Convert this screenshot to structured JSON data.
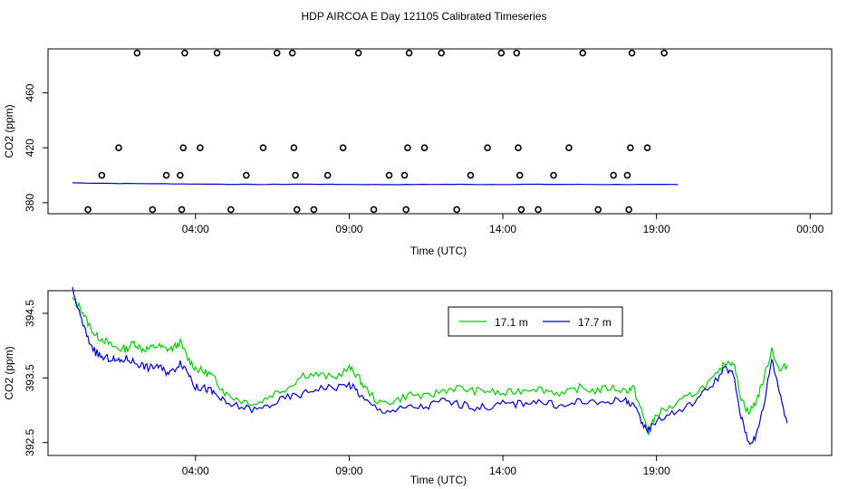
{
  "title": "HDP AIRCOA E  Day 121105  Calibrated Timeseries",
  "chart_data": [
    {
      "type": "scatter",
      "xlabel": "Time (UTC)",
      "ylabel": "CO2 (ppm)",
      "xlim_hours": [
        -0.8,
        24.7
      ],
      "ylim": [
        372,
        492
      ],
      "xticks": [
        {
          "h": 4,
          "label": "04:00"
        },
        {
          "h": 9,
          "label": "09:00"
        },
        {
          "h": 14,
          "label": "14:00"
        },
        {
          "h": 19,
          "label": "19:00"
        },
        {
          "h": 24,
          "label": "00:00"
        }
      ],
      "yticks": [
        380,
        420,
        460
      ],
      "points": [
        {
          "t": 0.5,
          "v": 375
        },
        {
          "t": 0.95,
          "v": 400
        },
        {
          "t": 1.5,
          "v": 420
        },
        {
          "t": 2.1,
          "v": 489
        },
        {
          "t": 2.6,
          "v": 375
        },
        {
          "t": 3.05,
          "v": 400
        },
        {
          "t": 3.5,
          "v": 400
        },
        {
          "t": 3.55,
          "v": 375
        },
        {
          "t": 3.6,
          "v": 420
        },
        {
          "t": 3.65,
          "v": 489
        },
        {
          "t": 4.15,
          "v": 420
        },
        {
          "t": 4.7,
          "v": 489
        },
        {
          "t": 5.15,
          "v": 375
        },
        {
          "t": 5.65,
          "v": 400
        },
        {
          "t": 6.2,
          "v": 420
        },
        {
          "t": 6.65,
          "v": 489
        },
        {
          "t": 7.15,
          "v": 489
        },
        {
          "t": 7.2,
          "v": 420
        },
        {
          "t": 7.25,
          "v": 400
        },
        {
          "t": 7.3,
          "v": 375
        },
        {
          "t": 7.85,
          "v": 375
        },
        {
          "t": 8.3,
          "v": 400
        },
        {
          "t": 8.8,
          "v": 420
        },
        {
          "t": 9.3,
          "v": 489
        },
        {
          "t": 9.8,
          "v": 375
        },
        {
          "t": 10.3,
          "v": 400
        },
        {
          "t": 10.8,
          "v": 400
        },
        {
          "t": 10.85,
          "v": 375
        },
        {
          "t": 10.9,
          "v": 420
        },
        {
          "t": 10.95,
          "v": 489
        },
        {
          "t": 11.45,
          "v": 420
        },
        {
          "t": 12.0,
          "v": 489
        },
        {
          "t": 12.5,
          "v": 375
        },
        {
          "t": 12.95,
          "v": 400
        },
        {
          "t": 13.5,
          "v": 420
        },
        {
          "t": 13.95,
          "v": 489
        },
        {
          "t": 14.45,
          "v": 489
        },
        {
          "t": 14.5,
          "v": 420
        },
        {
          "t": 14.55,
          "v": 400
        },
        {
          "t": 14.6,
          "v": 375
        },
        {
          "t": 15.15,
          "v": 375
        },
        {
          "t": 15.65,
          "v": 400
        },
        {
          "t": 16.15,
          "v": 420
        },
        {
          "t": 16.6,
          "v": 489
        },
        {
          "t": 17.1,
          "v": 375
        },
        {
          "t": 17.6,
          "v": 400
        },
        {
          "t": 18.05,
          "v": 400
        },
        {
          "t": 18.1,
          "v": 375
        },
        {
          "t": 18.15,
          "v": 420
        },
        {
          "t": 18.2,
          "v": 489
        },
        {
          "t": 18.7,
          "v": 420
        },
        {
          "t": 19.25,
          "v": 489
        }
      ],
      "series": [
        {
          "name": "mean",
          "color": "#0000cc",
          "t_start": 0.0,
          "t_end": 19.7,
          "values": [
            394.5,
            394.0,
            393.8,
            393.5,
            393.3,
            393.5,
            393.3,
            393.2,
            393.4,
            393.3,
            393.4,
            393.3,
            393.3,
            393.2
          ]
        }
      ]
    },
    {
      "type": "line",
      "xlabel": "Time (UTC)",
      "ylabel": "CO2 (ppm)",
      "xlim_hours": [
        -0.8,
        24.7
      ],
      "ylim": [
        392.3,
        394.85
      ],
      "xticks": [
        {
          "h": 4,
          "label": "04:00"
        },
        {
          "h": 9,
          "label": "09:00"
        },
        {
          "h": 14,
          "label": "14:00"
        },
        {
          "h": 19,
          "label": "19:00"
        }
      ],
      "yticks": [
        {
          "v": 392.5,
          "label": "392.5"
        },
        {
          "v": 393.5,
          "label": "393.5"
        },
        {
          "v": 394.5,
          "label": "394.5"
        }
      ],
      "legend": {
        "position": "top-center"
      },
      "series": [
        {
          "name": "17.1 m",
          "color": "#00cc00",
          "points": [
            [
              0.0,
              394.72
            ],
            [
              0.25,
              394.6
            ],
            [
              0.5,
              394.35
            ],
            [
              0.75,
              394.15
            ],
            [
              1.0,
              394.1
            ],
            [
              1.25,
              394.0
            ],
            [
              1.5,
              393.95
            ],
            [
              1.75,
              393.95
            ],
            [
              2.0,
              394.05
            ],
            [
              2.25,
              393.95
            ],
            [
              2.5,
              393.95
            ],
            [
              2.75,
              394.0
            ],
            [
              3.0,
              393.95
            ],
            [
              3.25,
              393.95
            ],
            [
              3.5,
              394.05
            ],
            [
              3.75,
              393.8
            ],
            [
              4.0,
              393.65
            ],
            [
              4.25,
              393.6
            ],
            [
              4.5,
              393.55
            ],
            [
              4.75,
              393.4
            ],
            [
              5.0,
              393.25
            ],
            [
              5.5,
              393.15
            ],
            [
              6.0,
              393.1
            ],
            [
              6.5,
              393.25
            ],
            [
              7.0,
              393.35
            ],
            [
              7.5,
              393.55
            ],
            [
              8.0,
              393.55
            ],
            [
              8.5,
              393.5
            ],
            [
              9.0,
              393.65
            ],
            [
              9.25,
              393.55
            ],
            [
              9.5,
              393.35
            ],
            [
              10.0,
              393.1
            ],
            [
              10.5,
              393.15
            ],
            [
              11.0,
              393.25
            ],
            [
              11.5,
              393.2
            ],
            [
              12.0,
              393.3
            ],
            [
              12.5,
              393.35
            ],
            [
              13.0,
              393.3
            ],
            [
              13.5,
              393.3
            ],
            [
              14.0,
              393.25
            ],
            [
              14.5,
              393.3
            ],
            [
              15.0,
              393.35
            ],
            [
              15.5,
              393.3
            ],
            [
              16.0,
              393.25
            ],
            [
              16.5,
              393.35
            ],
            [
              17.0,
              393.3
            ],
            [
              17.5,
              393.35
            ],
            [
              18.0,
              393.3
            ],
            [
              18.25,
              393.35
            ],
            [
              18.5,
              393.0
            ],
            [
              18.75,
              392.65
            ],
            [
              19.0,
              392.95
            ],
            [
              19.5,
              393.05
            ],
            [
              20.0,
              393.2
            ],
            [
              20.5,
              393.35
            ],
            [
              21.0,
              393.55
            ],
            [
              21.25,
              393.75
            ],
            [
              21.5,
              393.75
            ],
            [
              21.75,
              393.2
            ],
            [
              22.0,
              392.95
            ],
            [
              22.25,
              393.15
            ],
            [
              22.5,
              393.5
            ],
            [
              22.75,
              393.95
            ],
            [
              23.0,
              393.6
            ],
            [
              23.25,
              393.7
            ]
          ]
        },
        {
          "name": "17.7 m",
          "color": "#0000cc",
          "points": [
            [
              0.0,
              394.85
            ],
            [
              0.25,
              394.45
            ],
            [
              0.5,
              394.1
            ],
            [
              0.75,
              393.9
            ],
            [
              1.0,
              393.8
            ],
            [
              1.25,
              393.8
            ],
            [
              1.5,
              393.75
            ],
            [
              1.75,
              393.8
            ],
            [
              2.0,
              393.75
            ],
            [
              2.25,
              393.7
            ],
            [
              2.5,
              393.65
            ],
            [
              2.75,
              393.7
            ],
            [
              3.0,
              393.6
            ],
            [
              3.25,
              393.6
            ],
            [
              3.5,
              393.75
            ],
            [
              3.75,
              393.6
            ],
            [
              4.0,
              393.35
            ],
            [
              4.25,
              393.35
            ],
            [
              4.5,
              393.3
            ],
            [
              4.75,
              393.2
            ],
            [
              5.0,
              393.1
            ],
            [
              5.5,
              393.05
            ],
            [
              6.0,
              393.0
            ],
            [
              6.5,
              393.1
            ],
            [
              7.0,
              393.2
            ],
            [
              7.5,
              393.25
            ],
            [
              8.0,
              393.35
            ],
            [
              8.5,
              393.35
            ],
            [
              9.0,
              393.4
            ],
            [
              9.25,
              393.3
            ],
            [
              9.5,
              393.15
            ],
            [
              10.0,
              393.0
            ],
            [
              10.5,
              393.0
            ],
            [
              11.0,
              393.05
            ],
            [
              11.5,
              393.05
            ],
            [
              12.0,
              393.15
            ],
            [
              12.5,
              393.1
            ],
            [
              13.0,
              393.05
            ],
            [
              13.5,
              393.05
            ],
            [
              14.0,
              393.1
            ],
            [
              14.5,
              393.1
            ],
            [
              15.0,
              393.15
            ],
            [
              15.5,
              393.1
            ],
            [
              16.0,
              393.05
            ],
            [
              16.5,
              393.15
            ],
            [
              17.0,
              393.1
            ],
            [
              17.5,
              393.15
            ],
            [
              18.0,
              393.15
            ],
            [
              18.25,
              393.1
            ],
            [
              18.5,
              392.8
            ],
            [
              18.75,
              392.7
            ],
            [
              19.0,
              392.85
            ],
            [
              19.5,
              392.95
            ],
            [
              20.0,
              393.05
            ],
            [
              20.5,
              393.25
            ],
            [
              21.0,
              393.5
            ],
            [
              21.25,
              393.65
            ],
            [
              21.5,
              393.55
            ],
            [
              21.75,
              392.9
            ],
            [
              22.0,
              392.5
            ],
            [
              22.25,
              392.6
            ],
            [
              22.5,
              393.1
            ],
            [
              22.75,
              393.8
            ],
            [
              23.0,
              393.3
            ],
            [
              23.25,
              392.8
            ]
          ]
        }
      ]
    }
  ]
}
